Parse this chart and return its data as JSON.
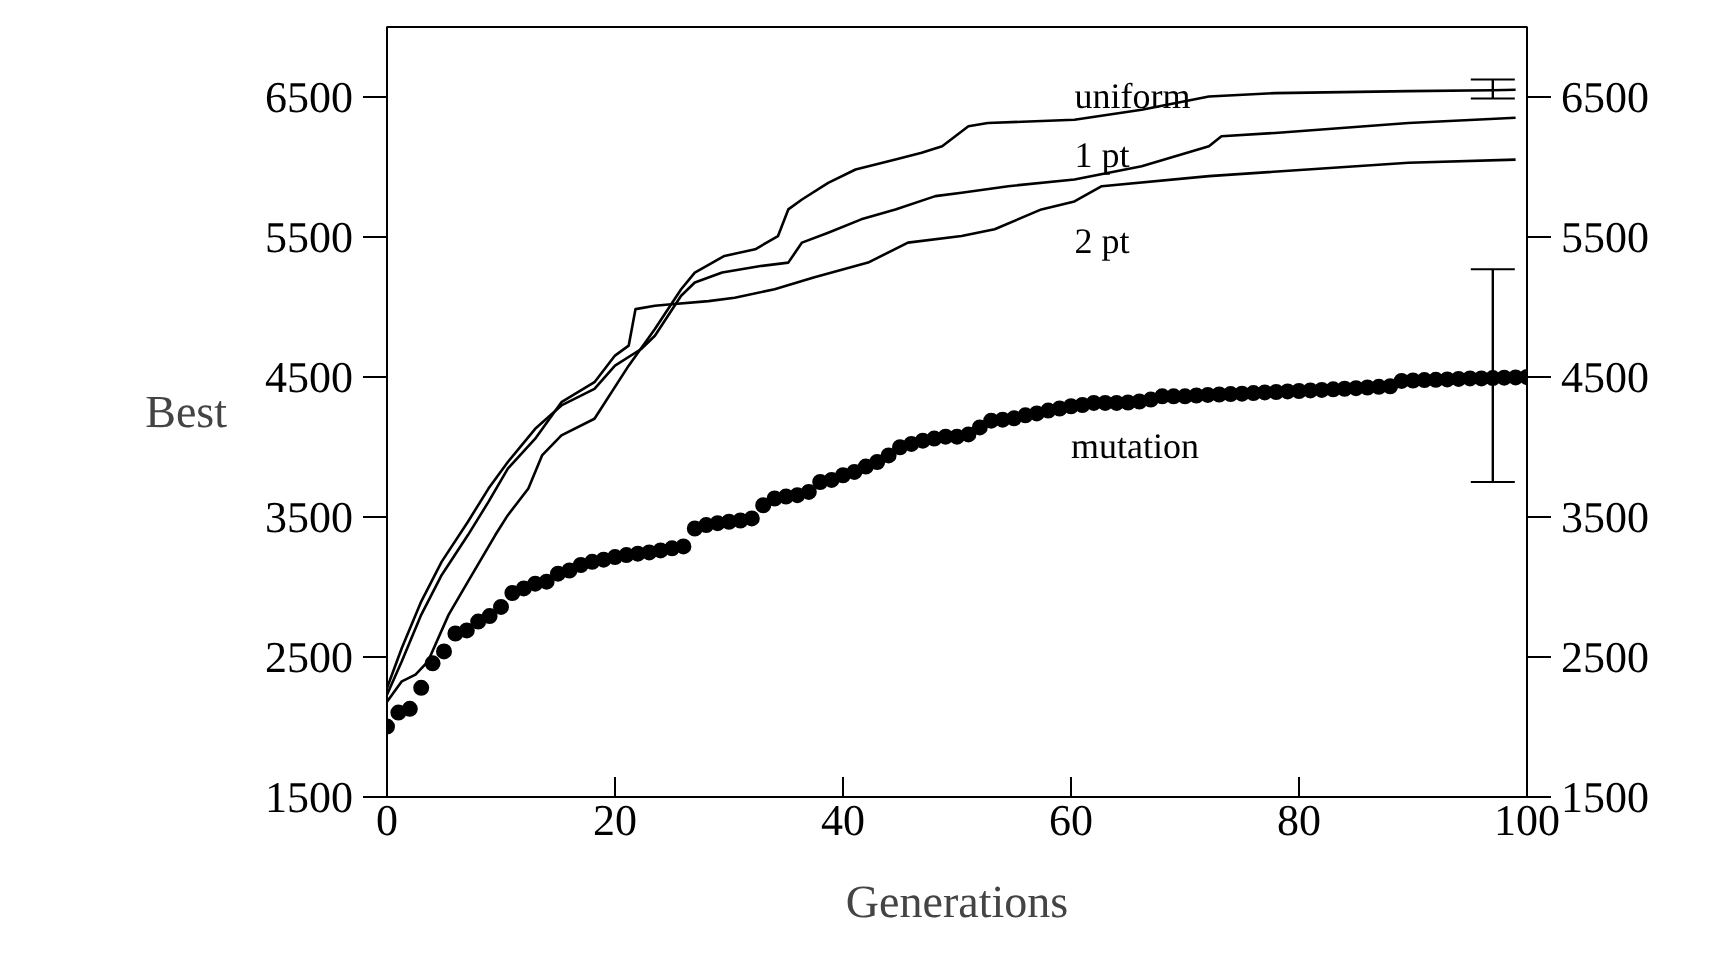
{
  "chart_data": {
    "type": "line",
    "xlabel": "Generations",
    "ylabel": "Best",
    "xlim": [
      0,
      100
    ],
    "xticks": [
      0,
      20,
      40,
      60,
      80,
      100
    ],
    "ylim": [
      1500,
      7000
    ],
    "yticks": [
      1500,
      2500,
      3500,
      4500,
      5500,
      6500
    ],
    "y2lim": [
      1500,
      7000
    ],
    "y2ticks": [
      1500,
      2500,
      3500,
      4500,
      5500,
      6500
    ],
    "grid": false,
    "series": [
      {
        "name": "uniform",
        "color": "#000000",
        "x": [
          0,
          1.3,
          2.5,
          3.6,
          5.4,
          7.1,
          9.5,
          10.6,
          12.4,
          13.6,
          15.3,
          18.2,
          21.2,
          23.5,
          25.8,
          27.0,
          29.6,
          32.3,
          34.3,
          35.2,
          36.4,
          38.7,
          41.1,
          44.6,
          46.9,
          48.7,
          51.0,
          52.7,
          60.3,
          66.2,
          72.1,
          77.9,
          89.6,
          97,
          99
        ],
        "values": [
          2180,
          2326,
          2374,
          2469,
          2801,
          3038,
          3371,
          3513,
          3703,
          3940,
          4083,
          4202,
          4581,
          4843,
          5127,
          5246,
          5365,
          5412,
          5507,
          5697,
          5768,
          5887,
          5982,
          6053,
          6101,
          6148,
          6291,
          6314,
          6338,
          6409,
          6504,
          6528,
          6542,
          6548,
          6552
        ],
        "errors": [
          null,
          null,
          null,
          null,
          null,
          null,
          null,
          null,
          null,
          null,
          null,
          null,
          null,
          null,
          null,
          null,
          null,
          null,
          null,
          null,
          null,
          null,
          null,
          null,
          null,
          null,
          null,
          null,
          null,
          null,
          null,
          null,
          null,
          [
            6490,
            6625
          ],
          null
        ]
      },
      {
        "name": "1 pt",
        "color": "#000000",
        "x": [
          0,
          1.3,
          3.0,
          4.8,
          7.1,
          8.9,
          10.6,
          13.0,
          15.3,
          18.2,
          20.0,
          22.3,
          23.5,
          25.8,
          27.0,
          29.4,
          32.9,
          35.2,
          36.4,
          38.7,
          41.6,
          44.6,
          48.1,
          50.4,
          54.5,
          60.3,
          66.2,
          72.1,
          73.2,
          77.9,
          89.6,
          99
        ],
        "values": [
          2279,
          2564,
          2896,
          3181,
          3466,
          3703,
          3893,
          4130,
          4297,
          4415,
          4581,
          4700,
          4795,
          5080,
          5175,
          5246,
          5294,
          5317,
          5460,
          5531,
          5626,
          5697,
          5792,
          5816,
          5863,
          5911,
          6006,
          6148,
          6220,
          6243,
          6314,
          6352
        ]
      },
      {
        "name": "2 pt",
        "color": "#000000",
        "x": [
          0,
          1.3,
          3.0,
          4.8,
          7.1,
          8.9,
          10.6,
          13.0,
          15.3,
          18.2,
          20.0,
          21.2,
          21.8,
          23.5,
          24.7,
          28.2,
          30.5,
          34.0,
          37.5,
          42.2,
          45.7,
          50.4,
          53.3,
          57.4,
          60.3,
          62.7,
          72.1,
          89.6,
          99
        ],
        "values": [
          2231,
          2469,
          2801,
          3086,
          3371,
          3608,
          3846,
          4059,
          4320,
          4463,
          4653,
          4724,
          4985,
          5009,
          5018,
          5042,
          5066,
          5127,
          5213,
          5317,
          5460,
          5507,
          5555,
          5697,
          5754,
          5863,
          5935,
          6030,
          6053
        ]
      },
      {
        "name": "mutation",
        "type": "scatter",
        "marker": "circle",
        "color": "#000000",
        "x": [
          0,
          1,
          2,
          3,
          4,
          5,
          6,
          7,
          8,
          9,
          10,
          11,
          12,
          13,
          14,
          15,
          16,
          17,
          18,
          19,
          20,
          21,
          22,
          23,
          24,
          25,
          26,
          27,
          28,
          29,
          30,
          31,
          32,
          33,
          34,
          35,
          36,
          37,
          38,
          39,
          40,
          41,
          42,
          43,
          44,
          45,
          46,
          47,
          48,
          49,
          50,
          51,
          52,
          53,
          54,
          55,
          56,
          57,
          58,
          59,
          60,
          61,
          62,
          63,
          64,
          65,
          66,
          67,
          68,
          69,
          70,
          71,
          72,
          73,
          74,
          75,
          76,
          77,
          78,
          79,
          80,
          81,
          82,
          83,
          84,
          85,
          86,
          87,
          88,
          89,
          90,
          91,
          92,
          93,
          94,
          95,
          96,
          97,
          98,
          99,
          100
        ],
        "values": [
          2003,
          2103,
          2130,
          2280,
          2455,
          2540,
          2668,
          2690,
          2753,
          2792,
          2858,
          2957,
          2990,
          3024,
          3038,
          3095,
          3118,
          3157,
          3180,
          3195,
          3214,
          3228,
          3238,
          3247,
          3261,
          3276,
          3290,
          3418,
          3442,
          3456,
          3466,
          3475,
          3490,
          3584,
          3632,
          3646,
          3656,
          3679,
          3750,
          3765,
          3798,
          3822,
          3860,
          3893,
          3940,
          3998,
          4022,
          4045,
          4060,
          4074,
          4074,
          4090,
          4140,
          4188,
          4195,
          4205,
          4226,
          4240,
          4260,
          4275,
          4291,
          4300,
          4315,
          4315,
          4315,
          4318,
          4325,
          4339,
          4362,
          4362,
          4362,
          4368,
          4372,
          4375,
          4378,
          4381,
          4385,
          4390,
          4393,
          4397,
          4400,
          4404,
          4408,
          4412,
          4416,
          4420,
          4425,
          4430,
          4434,
          4472,
          4475,
          4478,
          4480,
          4483,
          4486,
          4490,
          4490,
          4492,
          4495,
          4497,
          4500
        ],
        "errors": [
          null,
          null,
          null,
          null,
          null,
          null,
          null,
          null,
          null,
          null,
          null,
          null,
          null,
          null,
          null,
          null,
          null,
          null,
          null,
          null,
          null,
          null,
          null,
          null,
          null,
          null,
          null,
          null,
          null,
          null,
          null,
          null,
          null,
          null,
          null,
          null,
          null,
          null,
          null,
          null,
          null,
          null,
          null,
          null,
          null,
          null,
          null,
          null,
          null,
          null,
          null,
          null,
          null,
          null,
          null,
          null,
          null,
          null,
          null,
          null,
          null,
          null,
          null,
          null,
          null,
          null,
          null,
          null,
          null,
          null,
          null,
          null,
          null,
          null,
          null,
          null,
          null,
          null,
          null,
          null,
          null,
          null,
          null,
          null,
          null,
          null,
          null,
          null,
          null,
          null,
          null,
          null,
          null,
          null,
          null,
          null,
          null,
          [
            3750,
            5270
          ],
          null,
          null,
          null
        ]
      }
    ]
  }
}
